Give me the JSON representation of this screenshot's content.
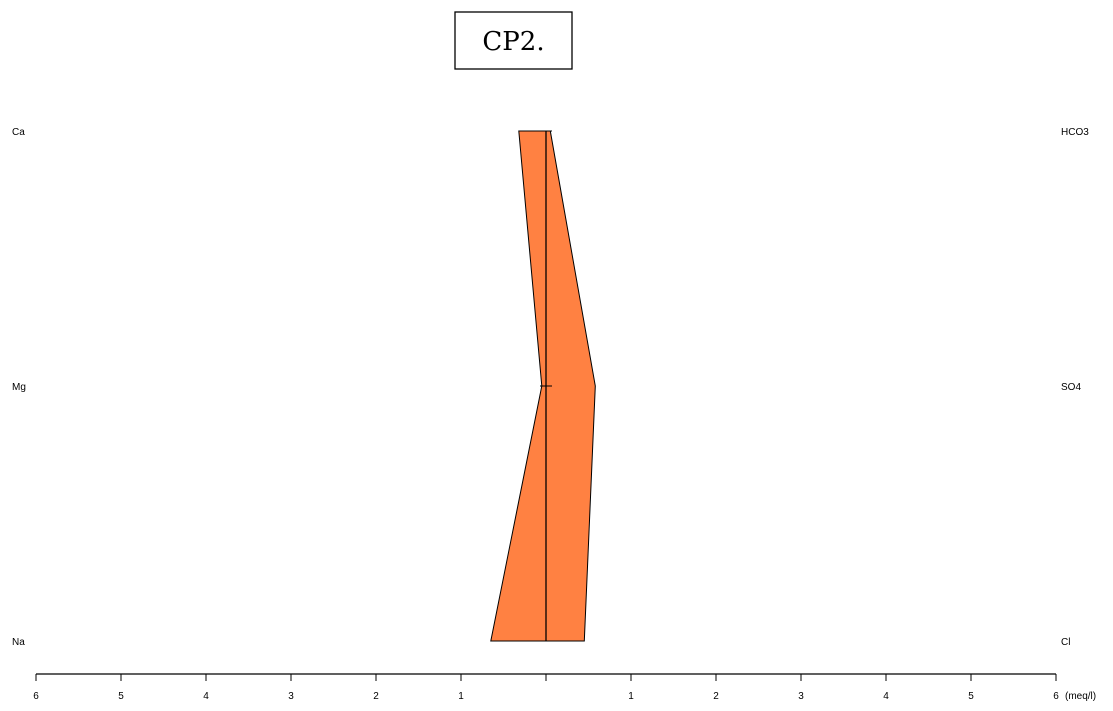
{
  "title": "CP2.",
  "colors": {
    "polygon_fill": "#FF8142",
    "stroke": "#000000",
    "background": "#FFFFFF"
  },
  "chart_data": {
    "type": "stiff",
    "title": "CP2.",
    "cations": [
      {
        "label": "Ca",
        "value": 0.32
      },
      {
        "label": "Mg",
        "value": 0.05
      },
      {
        "label": "Na",
        "value": 0.65
      }
    ],
    "anions": [
      {
        "label": "HCO3",
        "value": 0.05
      },
      {
        "label": "SO4",
        "value": 0.58
      },
      {
        "label": "Cl",
        "value": 0.45
      }
    ],
    "xaxis": {
      "ticks": [
        "6",
        "5",
        "4",
        "3",
        "2",
        "1",
        "",
        "1",
        "2",
        "3",
        "4",
        "5",
        "6"
      ],
      "range": [
        -6,
        6
      ],
      "unit": "(meq/l)"
    }
  }
}
